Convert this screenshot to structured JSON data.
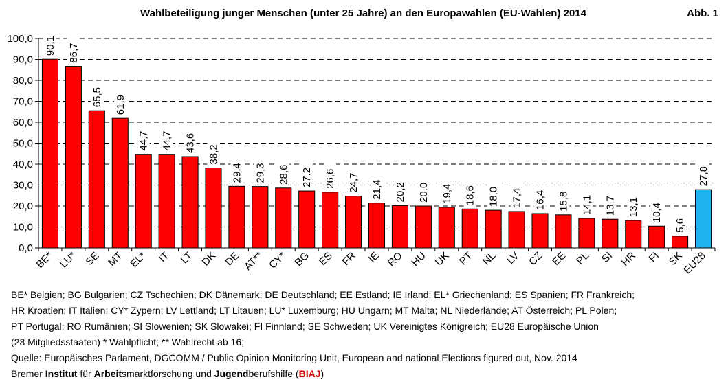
{
  "header": {
    "title": "Wahlbeteiligung junger Menschen (unter 25 Jahre) an den Europawahlen (EU-Wahlen) 2014",
    "figure_label": "Abb. 1"
  },
  "chart_data": {
    "type": "bar",
    "title": "Wahlbeteiligung junger Menschen (unter 25 Jahre) an den Europawahlen (EU-Wahlen) 2014",
    "xlabel": "",
    "ylabel": "",
    "ylim": [
      0,
      100
    ],
    "yticks": [
      "0,0",
      "10,0",
      "20,0",
      "30,0",
      "40,0",
      "50,0",
      "60,0",
      "70,0",
      "80,0",
      "90,0",
      "100,0"
    ],
    "grid": "dashed horizontal",
    "categories": [
      "BE*",
      "LU*",
      "SE",
      "MT",
      "EL*",
      "IT",
      "LT",
      "DK",
      "DE",
      "AT**",
      "CY*",
      "BG",
      "ES",
      "FR",
      "IE",
      "RO",
      "HU",
      "UK",
      "PT",
      "NL",
      "LV",
      "CZ",
      "EE",
      "PL",
      "SI",
      "HR",
      "FI",
      "SK",
      "EU28"
    ],
    "values": [
      90.1,
      86.7,
      65.5,
      61.9,
      44.7,
      44.7,
      43.6,
      38.2,
      29.4,
      29.3,
      28.6,
      27.2,
      26.6,
      24.7,
      21.4,
      20.2,
      20.0,
      19.4,
      18.6,
      18.0,
      17.4,
      16.4,
      15.8,
      14.1,
      13.7,
      13.1,
      10.4,
      5.6,
      27.8
    ],
    "value_labels": [
      "90,1",
      "86,7",
      "65,5",
      "61,9",
      "44,7",
      "44,7",
      "43,6",
      "38,2",
      "29,4",
      "29,3",
      "28,6",
      "27,2",
      "26,6",
      "24,7",
      "21,4",
      "20,2",
      "20,0",
      "19,4",
      "18,6",
      "18,0",
      "17,4",
      "16,4",
      "15,8",
      "14,1",
      "13,7",
      "13,1",
      "10,4",
      "5,6",
      "27,8"
    ],
    "colors": {
      "default": "#ff0000",
      "highlight": "#1fb4f0",
      "outline": "#000000"
    },
    "highlight_category": "EU28"
  },
  "legend": {
    "lines": [
      "BE*  Belgien; BG  Bulgarien; CZ  Tschechien; DK  Dänemark; DE  Deutschland; EE  Estland; IE  Irland; EL*  Griechenland; ES  Spanien; FR  Frankreich;",
      "HR  Kroatien; IT  Italien; CY*  Zypern; LV  Lettland; LT  Litauen; LU*  Luxemburg; HU  Ungarn; MT  Malta; NL  Niederlande; AT Österreich; PL  Polen;",
      "PT  Portugal; RO  Rumänien; SI  Slowenien; SK  Slowakei; FI  Finnland; SE  Schweden; UK  Vereinigtes Königreich; EU28  Europäische Union",
      "(28 Mitgliedsstaaten) * Wahlpflicht; ** Wahlrecht ab 16;"
    ]
  },
  "source": {
    "line": "Quelle: Europäisches Parlament, DGCOMM / Public Opinion Monitoring Unit, European and national Elections figured out, Nov. 2014",
    "credit": {
      "parts": [
        "Bremer ",
        "Institut",
        " für ",
        "Arbeit",
        "smarktforschung und ",
        "Jugend",
        "berufshilfe (",
        "BIAJ",
        ")"
      ]
    }
  }
}
